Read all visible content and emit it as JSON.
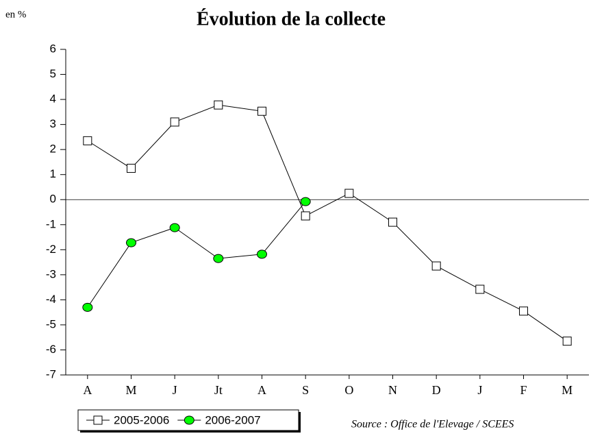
{
  "chart_data": {
    "type": "line",
    "title": "Évolution de la collecte",
    "y_unit": "en %",
    "source": "Source : Office de l'Elevage / SCEES",
    "categories": [
      "A",
      "M",
      "J",
      "Jt",
      "A",
      "S",
      "O",
      "N",
      "D",
      "J",
      "F",
      "M"
    ],
    "series": [
      {
        "name": "2005-2006",
        "color": "#ffffff",
        "marker": "square",
        "values": [
          2.35,
          1.25,
          3.1,
          3.78,
          3.53,
          -0.65,
          0.25,
          -0.9,
          -2.65,
          -3.58,
          -4.45,
          -5.65
        ]
      },
      {
        "name": "2006-2007",
        "color": "#00ff00",
        "marker": "circle",
        "values": [
          -4.3,
          -1.72,
          -1.12,
          -2.35,
          -2.18,
          -0.08,
          null,
          null,
          null,
          null,
          null,
          null
        ]
      }
    ],
    "ylim": [
      -7,
      6
    ],
    "yticks": [
      -7,
      -6,
      -5,
      -4,
      -3,
      -2,
      -1,
      0,
      1,
      2,
      3,
      4,
      5,
      6
    ],
    "zero_line": true,
    "legend": "bottom-left"
  }
}
